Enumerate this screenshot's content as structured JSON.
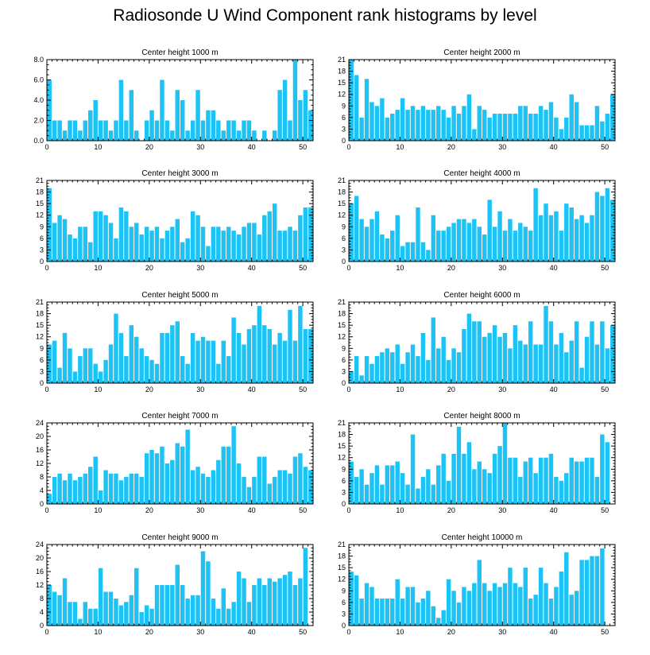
{
  "title": "Radiosonde U Wind Component rank histograms by level",
  "colors": {
    "bar": "#1cc3f4",
    "bar_edge": "#ffffff",
    "axis": "#000000"
  },
  "chart_data": [
    {
      "type": "bar",
      "title": "Center height 1000 m",
      "x_ticks": [
        0,
        10,
        20,
        30,
        40,
        50
      ],
      "x_range": [
        0,
        52
      ],
      "ylim": [
        0,
        8
      ],
      "y_ticks": [
        0,
        2,
        4,
        6,
        8
      ],
      "y_tick_labels": [
        "0.0",
        "2.0",
        "4.0",
        "6.0",
        "8.0"
      ],
      "values": [
        6,
        2,
        2,
        1,
        2,
        2,
        1,
        2,
        3,
        4,
        2,
        2,
        1,
        2,
        6,
        2,
        5,
        1,
        0,
        2,
        3,
        2,
        6,
        2,
        1,
        5,
        4,
        1,
        2,
        5,
        2,
        3,
        3,
        2,
        1,
        2,
        2,
        1,
        2,
        2,
        1,
        0,
        1,
        0,
        1,
        5,
        6,
        2,
        8,
        4,
        5,
        3
      ]
    },
    {
      "type": "bar",
      "title": "Center height 2000 m",
      "x_ticks": [
        0,
        10,
        20,
        30,
        40,
        50
      ],
      "x_range": [
        0,
        52
      ],
      "ylim": [
        0,
        21
      ],
      "y_ticks": [
        0,
        3,
        6,
        9,
        12,
        15,
        18,
        21
      ],
      "y_tick_labels": [
        "0",
        "3",
        "6",
        "9",
        "12",
        "15",
        "18",
        "21"
      ],
      "values": [
        21,
        17,
        6,
        16,
        10,
        9,
        11,
        6,
        7,
        8,
        11,
        8,
        9,
        8,
        9,
        8,
        8,
        9,
        8,
        6,
        9,
        7,
        9,
        12,
        3,
        9,
        8,
        6,
        7,
        7,
        7,
        7,
        7,
        9,
        9,
        7,
        7,
        9,
        8,
        10,
        6,
        3,
        6,
        12,
        10,
        4,
        4,
        4,
        9,
        5,
        7,
        12
      ]
    },
    {
      "type": "bar",
      "title": "Center height 3000 m",
      "x_ticks": [
        0,
        10,
        20,
        30,
        40,
        50
      ],
      "x_range": [
        0,
        52
      ],
      "ylim": [
        0,
        21
      ],
      "y_ticks": [
        0,
        3,
        6,
        9,
        12,
        15,
        18,
        21
      ],
      "y_tick_labels": [
        "0",
        "3",
        "6",
        "9",
        "12",
        "15",
        "18",
        "21"
      ],
      "values": [
        19,
        10,
        12,
        11,
        7,
        6,
        9,
        9,
        5,
        13,
        13,
        12,
        10,
        6,
        14,
        13,
        9,
        10,
        7,
        9,
        8,
        9,
        6,
        8,
        9,
        11,
        5,
        6,
        13,
        12,
        9,
        4,
        9,
        9,
        8,
        9,
        8,
        7,
        9,
        10,
        10,
        7,
        12,
        13,
        15,
        8,
        8,
        9,
        8,
        12,
        14,
        14
      ]
    },
    {
      "type": "bar",
      "title": "Center height 4000 m",
      "x_ticks": [
        0,
        10,
        20,
        30,
        40,
        50
      ],
      "x_range": [
        0,
        52
      ],
      "ylim": [
        0,
        21
      ],
      "y_ticks": [
        0,
        3,
        6,
        9,
        12,
        15,
        18,
        21
      ],
      "y_tick_labels": [
        "0",
        "3",
        "6",
        "9",
        "12",
        "15",
        "18",
        "21"
      ],
      "values": [
        15,
        17,
        11,
        9,
        11,
        13,
        7,
        6,
        8,
        12,
        4,
        5,
        5,
        14,
        5,
        3,
        12,
        8,
        8,
        9,
        10,
        11,
        11,
        10,
        11,
        9,
        7,
        16,
        9,
        13,
        8,
        11,
        8,
        10,
        9,
        8,
        19,
        12,
        15,
        12,
        13,
        8,
        15,
        14,
        11,
        12,
        10,
        12,
        18,
        17,
        19,
        16
      ]
    },
    {
      "type": "bar",
      "title": "Center height 5000 m",
      "x_ticks": [
        0,
        10,
        20,
        30,
        40,
        50
      ],
      "x_range": [
        0,
        52
      ],
      "ylim": [
        0,
        21
      ],
      "y_ticks": [
        0,
        3,
        6,
        9,
        12,
        15,
        18,
        21
      ],
      "y_tick_labels": [
        "0",
        "3",
        "6",
        "9",
        "12",
        "15",
        "18",
        "21"
      ],
      "values": [
        10,
        11,
        4,
        13,
        9,
        3,
        7,
        9,
        9,
        5,
        3,
        6,
        10,
        18,
        13,
        7,
        15,
        12,
        9,
        7,
        6,
        5,
        13,
        13,
        15,
        16,
        7,
        5,
        13,
        11,
        12,
        11,
        11,
        5,
        11,
        7,
        17,
        13,
        10,
        14,
        15,
        20,
        15,
        14,
        10,
        13,
        11,
        19,
        11,
        20,
        14,
        14
      ]
    },
    {
      "type": "bar",
      "title": "Center height 6000 m",
      "x_ticks": [
        0,
        10,
        20,
        30,
        40,
        50
      ],
      "x_range": [
        0,
        52
      ],
      "ylim": [
        0,
        21
      ],
      "y_ticks": [
        0,
        3,
        6,
        9,
        12,
        15,
        18,
        21
      ],
      "y_tick_labels": [
        "0",
        "3",
        "6",
        "9",
        "12",
        "15",
        "18",
        "21"
      ],
      "values": [
        3,
        7,
        2,
        7,
        5,
        7,
        8,
        9,
        8,
        10,
        5,
        8,
        10,
        7,
        13,
        6,
        17,
        9,
        12,
        6,
        9,
        8,
        14,
        18,
        16,
        16,
        12,
        13,
        15,
        12,
        13,
        9,
        15,
        11,
        10,
        16,
        10,
        10,
        20,
        16,
        10,
        13,
        8,
        11,
        16,
        4,
        12,
        16,
        10,
        16,
        9,
        15
      ]
    },
    {
      "type": "bar",
      "title": "Center height 7000 m",
      "x_ticks": [
        0,
        10,
        20,
        30,
        40,
        50
      ],
      "x_range": [
        0,
        52
      ],
      "ylim": [
        0,
        24
      ],
      "y_ticks": [
        0,
        4,
        8,
        12,
        16,
        20,
        24
      ],
      "y_tick_labels": [
        "0",
        "4",
        "8",
        "12",
        "16",
        "20",
        "24"
      ],
      "values": [
        3,
        8,
        9,
        7,
        9,
        7,
        8,
        9,
        11,
        14,
        4,
        10,
        9,
        9,
        7,
        8,
        9,
        9,
        8,
        15,
        16,
        15,
        17,
        12,
        13,
        18,
        17,
        22,
        10,
        11,
        9,
        8,
        10,
        13,
        17,
        17,
        23,
        12,
        8,
        5,
        8,
        14,
        14,
        6,
        8,
        10,
        10,
        9,
        14,
        15,
        11,
        10
      ]
    },
    {
      "type": "bar",
      "title": "Center height 8000 m",
      "x_ticks": [
        0,
        10,
        20,
        30,
        40,
        50
      ],
      "x_range": [
        0,
        52
      ],
      "ylim": [
        0,
        21
      ],
      "y_ticks": [
        0,
        3,
        6,
        9,
        12,
        15,
        18,
        21
      ],
      "y_tick_labels": [
        "0",
        "3",
        "6",
        "9",
        "12",
        "15",
        "18",
        "21"
      ],
      "values": [
        11,
        7,
        9,
        5,
        8,
        10,
        5,
        10,
        10,
        11,
        8,
        5,
        18,
        4,
        7,
        9,
        5,
        10,
        13,
        6,
        13,
        20,
        13,
        16,
        9,
        11,
        9,
        8,
        13,
        15,
        21,
        12,
        12,
        7,
        11,
        12,
        8,
        12,
        12,
        13,
        7,
        6,
        8,
        12,
        11,
        11,
        12,
        12,
        7,
        18,
        16,
        0
      ]
    },
    {
      "type": "bar",
      "title": "Center height 9000 m",
      "x_ticks": [
        0,
        10,
        20,
        30,
        40,
        50
      ],
      "x_range": [
        0,
        52
      ],
      "ylim": [
        0,
        24
      ],
      "y_ticks": [
        0,
        4,
        8,
        12,
        16,
        20,
        24
      ],
      "y_tick_labels": [
        "0",
        "4",
        "8",
        "12",
        "16",
        "20",
        "24"
      ],
      "values": [
        12,
        10,
        9,
        14,
        7,
        7,
        2,
        7,
        5,
        5,
        17,
        10,
        10,
        8,
        6,
        7,
        9,
        17,
        4,
        6,
        5,
        12,
        12,
        12,
        12,
        18,
        12,
        8,
        9,
        9,
        22,
        19,
        8,
        5,
        11,
        5,
        7,
        16,
        14,
        7,
        12,
        14,
        12,
        14,
        13,
        14,
        15,
        16,
        12,
        14,
        23,
        0
      ]
    },
    {
      "type": "bar",
      "title": "Center height 10000 m",
      "x_ticks": [
        0,
        10,
        20,
        30,
        40,
        50
      ],
      "x_range": [
        0,
        52
      ],
      "ylim": [
        0,
        21
      ],
      "y_ticks": [
        0,
        3,
        6,
        9,
        12,
        15,
        18,
        21
      ],
      "y_tick_labels": [
        "0",
        "3",
        "6",
        "9",
        "12",
        "15",
        "18",
        "21"
      ],
      "values": [
        14,
        13,
        7,
        11,
        10,
        7,
        7,
        7,
        7,
        12,
        7,
        10,
        10,
        6,
        7,
        9,
        5,
        2,
        4,
        12,
        9,
        6,
        10,
        9,
        11,
        17,
        11,
        9,
        11,
        10,
        11,
        15,
        11,
        10,
        15,
        7,
        8,
        15,
        11,
        7,
        10,
        14,
        19,
        8,
        9,
        17,
        17,
        18,
        18,
        20,
        0,
        0
      ]
    }
  ]
}
